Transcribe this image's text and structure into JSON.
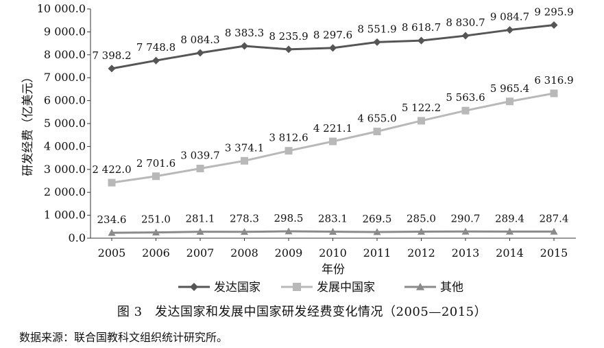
{
  "chart_data": {
    "type": "line",
    "title": "",
    "figure_caption": "图 3　发达国家和发展中国家研发经费变化情况（2005—2015）",
    "source_note": "数据来源：联合国教科文组织统计研究所。",
    "xlabel": "年份",
    "ylabel": "研发经费（亿美元）",
    "ylim": [
      0,
      10000
    ],
    "y_ticks": [
      "0.0",
      "1 000.0",
      "2 000.0",
      "3 000.0",
      "4 000.0",
      "5 000.0",
      "6 000.0",
      "7 000.0",
      "8 000.0",
      "9 000.0",
      "10 000.0"
    ],
    "grid": false,
    "legend_position": "bottom",
    "categories": [
      "2005",
      "2006",
      "2007",
      "2008",
      "2009",
      "2010",
      "2011",
      "2012",
      "2013",
      "2014",
      "2015"
    ],
    "series": [
      {
        "name": "发达国家",
        "marker": "diamond",
        "color": "#555555",
        "values": [
          7398.2,
          7748.8,
          8084.3,
          8383.3,
          8235.9,
          8297.6,
          8551.9,
          8618.7,
          8830.7,
          9084.7,
          9295.9
        ],
        "labels": [
          "7 398.2",
          "7 748.8",
          "8 084.3",
          "8 383.3",
          "8 235.9",
          "8 297.6",
          "8 551.9",
          "8 618.7",
          "8 830.7",
          "9 084.7",
          "9 295.9"
        ]
      },
      {
        "name": "发展中国家",
        "marker": "square",
        "color": "#b8b8b8",
        "values": [
          2422.0,
          2701.6,
          3039.7,
          3374.1,
          3812.6,
          4221.1,
          4655.0,
          5122.2,
          5563.6,
          5965.4,
          6316.9
        ],
        "labels": [
          "2 422.0",
          "2 701.6",
          "3 039.7",
          "3 374.1",
          "3 812.6",
          "4 221.1",
          "4 655.0",
          "5 122.2",
          "5 563.6",
          "5 965.4",
          "6 316.9"
        ]
      },
      {
        "name": "其他",
        "marker": "triangle",
        "color": "#8a8a8a",
        "values": [
          234.6,
          251.0,
          281.1,
          278.3,
          298.5,
          283.1,
          269.5,
          285.0,
          290.7,
          289.4,
          287.4
        ],
        "labels": [
          "234.6",
          "251.0",
          "281.1",
          "278.3",
          "298.5",
          "283.1",
          "269.5",
          "285.0",
          "290.7",
          "289.4",
          "287.4"
        ]
      }
    ]
  }
}
